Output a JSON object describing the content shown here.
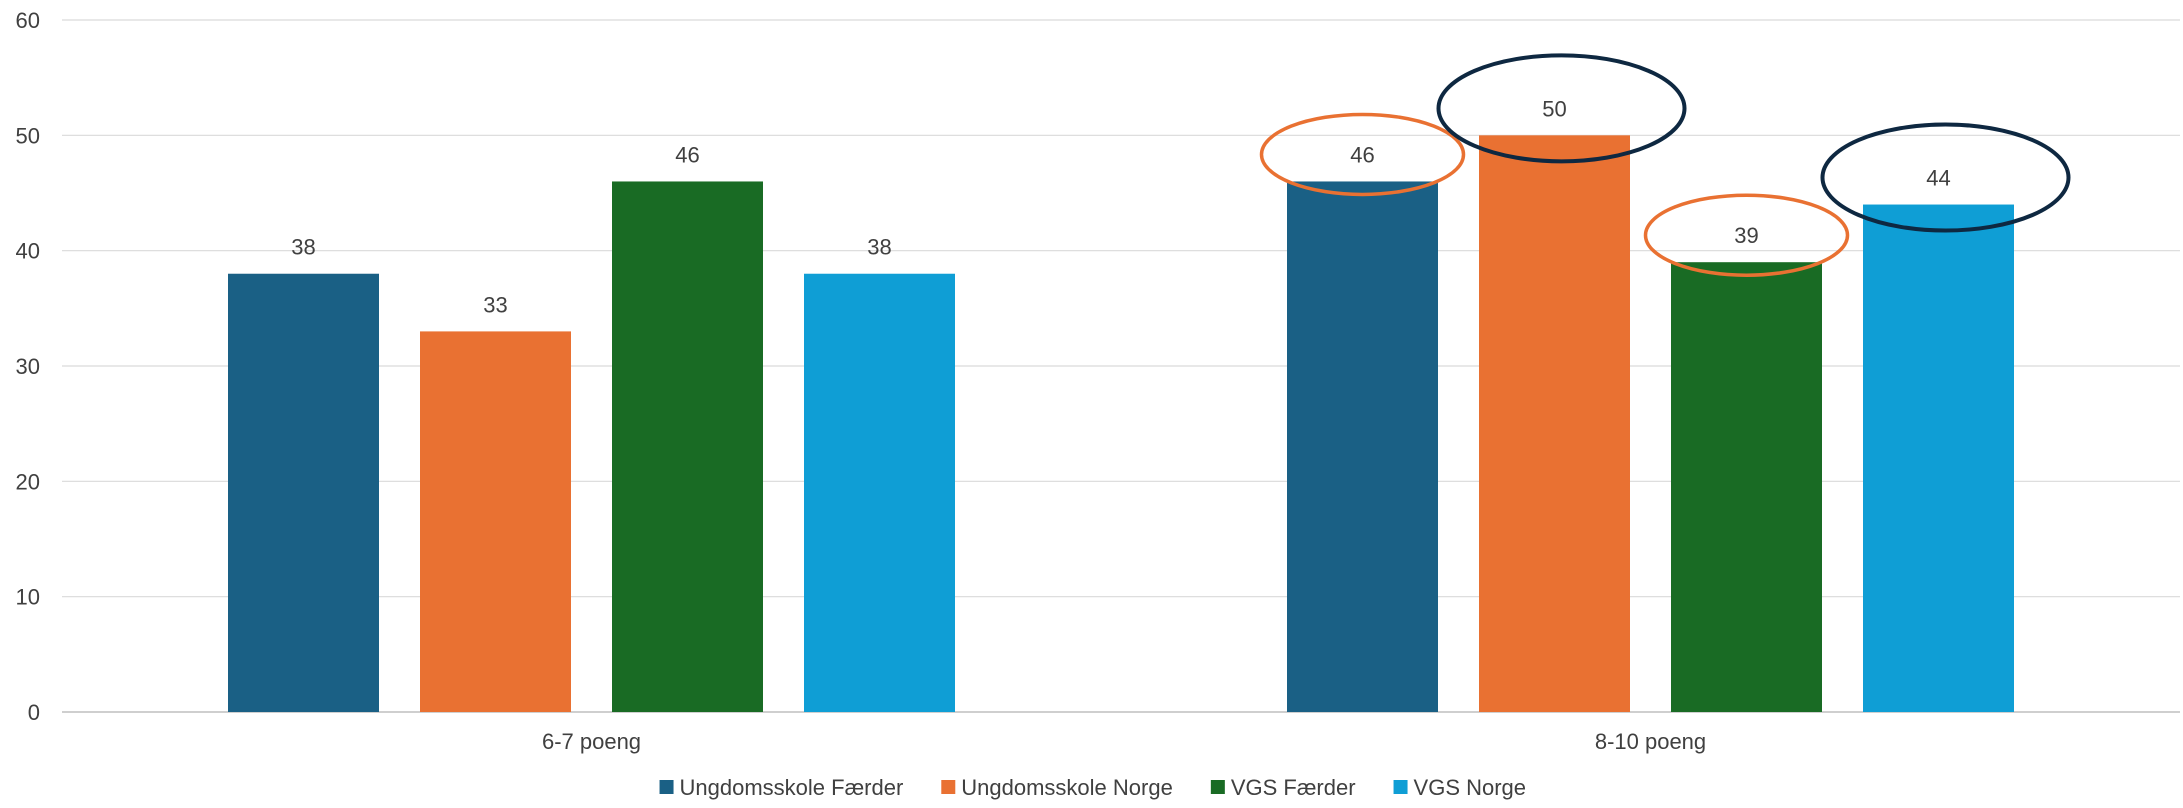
{
  "chart_data": {
    "type": "bar",
    "title": "",
    "xlabel": "",
    "ylabel": "",
    "ylim": [
      0,
      60
    ],
    "yticks": [
      0,
      10,
      20,
      30,
      40,
      50,
      60
    ],
    "grid": true,
    "legend_position": "bottom",
    "categories": [
      "6-7 poeng",
      "8-10 poeng"
    ],
    "series": [
      {
        "name": "Ungdomsskole Færder",
        "color": "#1a6085",
        "values": [
          38,
          46
        ]
      },
      {
        "name": "Ungdomsskole Norge",
        "color": "#e97132",
        "values": [
          33,
          50
        ]
      },
      {
        "name": "VGS Færder",
        "color": "#196b24",
        "values": [
          46,
          39
        ]
      },
      {
        "name": "VGS Norge",
        "color": "#0f9ed5",
        "values": [
          38,
          44
        ]
      }
    ],
    "annotations": [
      {
        "type": "ellipse",
        "category": "8-10 poeng",
        "series": "Ungdomsskole Færder",
        "color": "#e97132"
      },
      {
        "type": "ellipse",
        "category": "8-10 poeng",
        "series": "Ungdomsskole Norge",
        "color": "#0e2841"
      },
      {
        "type": "ellipse",
        "category": "8-10 poeng",
        "series": "VGS Færder",
        "color": "#e97132"
      },
      {
        "type": "ellipse",
        "category": "8-10 poeng",
        "series": "VGS Norge",
        "color": "#0e2841"
      }
    ]
  }
}
